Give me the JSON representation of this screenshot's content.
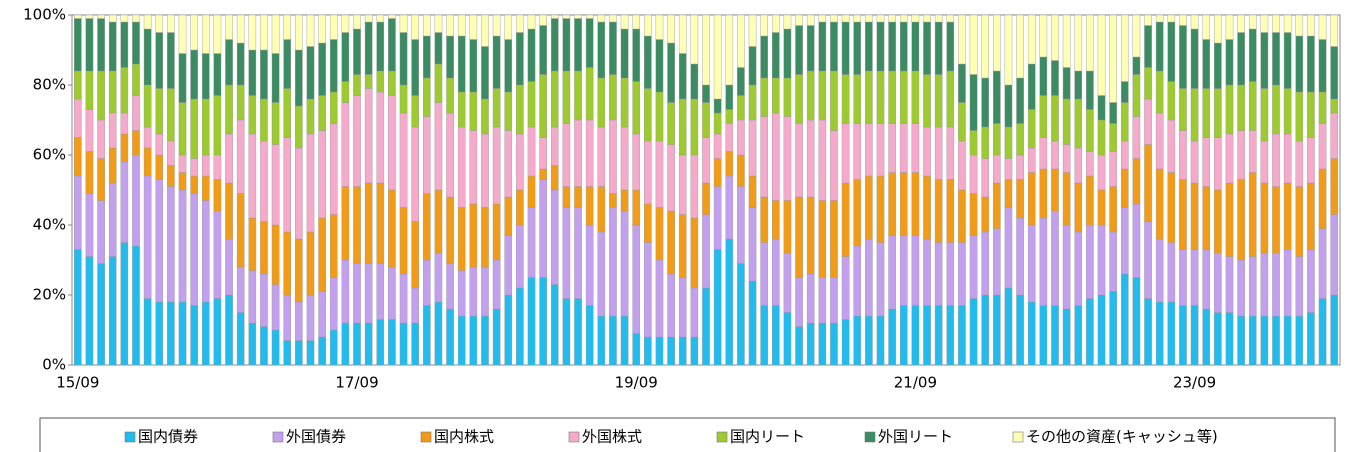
{
  "chart_data": {
    "type": "stacked_bar",
    "categories": [
      "15/09",
      null,
      null,
      null,
      null,
      null,
      null,
      null,
      null,
      null,
      null,
      null,
      null,
      null,
      null,
      null,
      null,
      null,
      null,
      null,
      null,
      null,
      null,
      null,
      "17/09",
      null,
      null,
      null,
      null,
      null,
      null,
      null,
      null,
      null,
      null,
      null,
      null,
      null,
      null,
      null,
      null,
      null,
      null,
      null,
      null,
      null,
      null,
      null,
      "19/09",
      null,
      null,
      null,
      null,
      null,
      null,
      null,
      null,
      null,
      null,
      null,
      null,
      null,
      null,
      null,
      null,
      null,
      null,
      null,
      null,
      null,
      null,
      null,
      "21/09",
      null,
      null,
      null,
      null,
      null,
      null,
      null,
      null,
      null,
      null,
      null,
      null,
      null,
      null,
      null,
      null,
      null,
      null,
      null,
      null,
      null,
      null,
      null,
      "23/09",
      null,
      null,
      null,
      null,
      null,
      null,
      null,
      null,
      null,
      null,
      null,
      null
    ],
    "series": [
      {
        "name": "国内債券",
        "color": "#22bbee",
        "values": [
          33,
          31,
          29,
          31,
          35,
          34,
          19,
          18,
          18,
          18,
          17,
          18,
          19,
          20,
          15,
          12,
          11,
          10,
          7,
          7,
          7,
          8,
          10,
          12,
          12,
          12,
          13,
          13,
          12,
          12,
          17,
          18,
          16,
          14,
          14,
          14,
          16,
          20,
          22,
          25,
          25,
          23,
          19,
          19,
          17,
          14,
          14,
          14,
          9,
          8,
          8,
          8,
          8,
          8,
          22,
          33,
          36,
          29,
          24,
          17,
          17,
          15,
          11,
          12,
          12,
          12,
          13,
          14,
          14,
          14,
          16,
          17,
          17,
          17,
          17,
          17,
          17,
          19,
          20,
          20,
          22,
          20,
          18,
          17,
          17,
          16,
          17,
          19,
          20,
          21,
          26,
          25,
          19,
          18,
          18,
          17,
          17,
          16,
          15,
          15,
          14,
          14,
          14,
          14,
          14,
          14,
          15,
          19,
          20
        ]
      },
      {
        "name": "外国債券",
        "color": "#c3a0ee",
        "values": [
          21,
          18,
          18,
          21,
          23,
          26,
          35,
          35,
          33,
          32,
          32,
          29,
          25,
          16,
          13,
          15,
          15,
          13,
          13,
          11,
          13,
          13,
          15,
          18,
          17,
          17,
          16,
          15,
          14,
          10,
          13,
          14,
          13,
          13,
          14,
          14,
          14,
          17,
          18,
          20,
          28,
          27,
          26,
          26,
          23,
          24,
          31,
          30,
          31,
          27,
          22,
          18,
          17,
          14,
          21,
          18,
          18,
          22,
          21,
          18,
          19,
          17,
          14,
          14,
          13,
          13,
          18,
          20,
          22,
          21,
          21,
          20,
          20,
          19,
          18,
          18,
          18,
          18,
          18,
          19,
          23,
          22,
          22,
          25,
          27,
          24,
          21,
          21,
          20,
          17,
          19,
          21,
          22,
          18,
          17,
          16,
          16,
          17,
          17,
          16,
          16,
          17,
          18,
          18,
          19,
          17,
          18,
          20,
          23
        ]
      },
      {
        "name": "国内株式",
        "color": "#f29b16",
        "values": [
          11,
          12,
          12,
          10,
          8,
          7,
          8,
          7,
          6,
          5,
          5,
          7,
          9,
          16,
          21,
          15,
          15,
          17,
          18,
          18,
          18,
          21,
          18,
          21,
          22,
          23,
          23,
          22,
          19,
          19,
          19,
          18,
          19,
          18,
          18,
          17,
          16,
          11,
          10,
          9,
          3,
          7,
          6,
          6,
          11,
          13,
          4,
          6,
          10,
          11,
          15,
          18,
          18,
          20,
          9,
          8,
          7,
          9,
          9,
          13,
          11,
          15,
          23,
          22,
          22,
          22,
          21,
          19,
          18,
          19,
          18,
          18,
          18,
          18,
          18,
          18,
          15,
          12,
          10,
          13,
          8,
          11,
          15,
          14,
          12,
          15,
          14,
          14,
          10,
          13,
          11,
          13,
          22,
          20,
          20,
          20,
          19,
          18,
          18,
          21,
          23,
          24,
          20,
          19,
          19,
          20,
          19,
          17,
          16
        ]
      },
      {
        "name": "外国株式",
        "color": "#f6aacb",
        "values": [
          11,
          12,
          11,
          10,
          6,
          10,
          6,
          6,
          7,
          5,
          5,
          6,
          7,
          14,
          21,
          24,
          23,
          23,
          27,
          26,
          28,
          25,
          26,
          24,
          26,
          27,
          26,
          27,
          27,
          27,
          22,
          25,
          24,
          23,
          21,
          21,
          22,
          19,
          16,
          14,
          9,
          11,
          18,
          19,
          19,
          17,
          21,
          18,
          16,
          18,
          19,
          19,
          17,
          18,
          13,
          7,
          8,
          10,
          16,
          23,
          25,
          24,
          21,
          22,
          23,
          20,
          17,
          16,
          15,
          15,
          14,
          14,
          14,
          14,
          15,
          15,
          14,
          11,
          11,
          8,
          6,
          7,
          7,
          9,
          8,
          8,
          10,
          7,
          10,
          10,
          8,
          12,
          13,
          16,
          15,
          14,
          12,
          14,
          15,
          14,
          14,
          12,
          12,
          15,
          14,
          13,
          13,
          13,
          13
        ]
      },
      {
        "name": "国内リート",
        "color": "#9dca2e",
        "values": [
          8,
          11,
          14,
          12,
          13,
          9,
          12,
          13,
          15,
          15,
          17,
          16,
          17,
          14,
          10,
          11,
          12,
          12,
          14,
          12,
          10,
          10,
          9,
          6,
          6,
          4,
          6,
          7,
          8,
          9,
          11,
          11,
          10,
          10,
          11,
          10,
          11,
          11,
          14,
          13,
          18,
          16,
          15,
          14,
          15,
          14,
          13,
          14,
          15,
          15,
          14,
          12,
          16,
          16,
          10,
          6,
          4,
          7,
          10,
          11,
          10,
          11,
          14,
          14,
          14,
          17,
          14,
          14,
          15,
          15,
          15,
          15,
          15,
          15,
          15,
          16,
          11,
          7,
          9,
          9,
          9,
          9,
          11,
          12,
          13,
          13,
          14,
          12,
          10,
          8,
          11,
          12,
          9,
          12,
          11,
          12,
          15,
          14,
          14,
          14,
          13,
          14,
          15,
          14,
          13,
          14,
          13,
          9,
          4
        ]
      },
      {
        "name": "外国リート",
        "color": "#3b8c62",
        "values": [
          15,
          15,
          15,
          14,
          13,
          12,
          16,
          16,
          16,
          14,
          14,
          13,
          12,
          13,
          12,
          13,
          14,
          14,
          14,
          16,
          15,
          15,
          15,
          14,
          13,
          15,
          14,
          15,
          15,
          16,
          12,
          9,
          12,
          16,
          15,
          15,
          15,
          15,
          15,
          15,
          14,
          15,
          15,
          15,
          14,
          16,
          15,
          14,
          15,
          15,
          15,
          17,
          13,
          10,
          5,
          4,
          7,
          8,
          11,
          12,
          13,
          14,
          14,
          13,
          14,
          14,
          15,
          15,
          14,
          14,
          14,
          14,
          14,
          15,
          15,
          14,
          11,
          16,
          14,
          15,
          12,
          13,
          13,
          11,
          10,
          9,
          8,
          11,
          7,
          6,
          6,
          5,
          12,
          14,
          17,
          18,
          17,
          14,
          13,
          13,
          15,
          15,
          16,
          15,
          16,
          16,
          16,
          15,
          15
        ]
      },
      {
        "name": "その他の資産(キャッシュ等)",
        "color": "#ffffb4",
        "values": [
          1,
          1,
          1,
          2,
          2,
          2,
          4,
          5,
          5,
          11,
          10,
          11,
          11,
          7,
          8,
          10,
          10,
          11,
          7,
          10,
          9,
          8,
          7,
          5,
          4,
          2,
          2,
          1,
          5,
          7,
          6,
          5,
          6,
          6,
          7,
          9,
          6,
          7,
          5,
          4,
          3,
          1,
          1,
          1,
          1,
          2,
          2,
          4,
          4,
          6,
          7,
          8,
          11,
          14,
          20,
          24,
          20,
          15,
          9,
          6,
          5,
          4,
          3,
          3,
          2,
          2,
          2,
          2,
          2,
          2,
          2,
          2,
          2,
          2,
          2,
          2,
          14,
          17,
          18,
          16,
          20,
          18,
          14,
          12,
          13,
          15,
          16,
          16,
          23,
          25,
          19,
          12,
          3,
          2,
          2,
          3,
          4,
          7,
          8,
          7,
          5,
          4,
          5,
          5,
          5,
          6,
          6,
          7,
          9
        ]
      }
    ],
    "ylim": [
      0,
      100
    ],
    "yticks": [
      {
        "value": 0,
        "label": "0%"
      },
      {
        "value": 20,
        "label": "20%"
      },
      {
        "value": 40,
        "label": "40%"
      },
      {
        "value": 60,
        "label": "60%"
      },
      {
        "value": 80,
        "label": "80%"
      },
      {
        "value": 100,
        "label": "100%"
      }
    ],
    "legend": "bottom"
  }
}
